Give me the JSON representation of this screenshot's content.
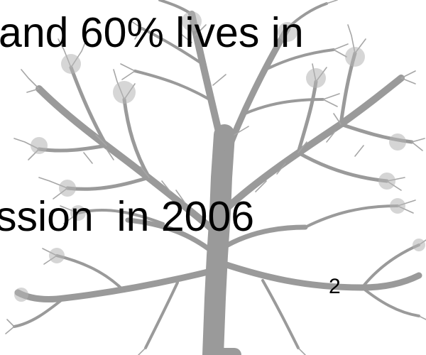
{
  "slide": {
    "text_line_1": "and 60% lives in",
    "text_line_2": "ssion  in 2006",
    "page_number": "2"
  },
  "background": {
    "image": "tree-silhouette",
    "tree_color": "#9a9a9a",
    "page_color": "#ffffff"
  }
}
